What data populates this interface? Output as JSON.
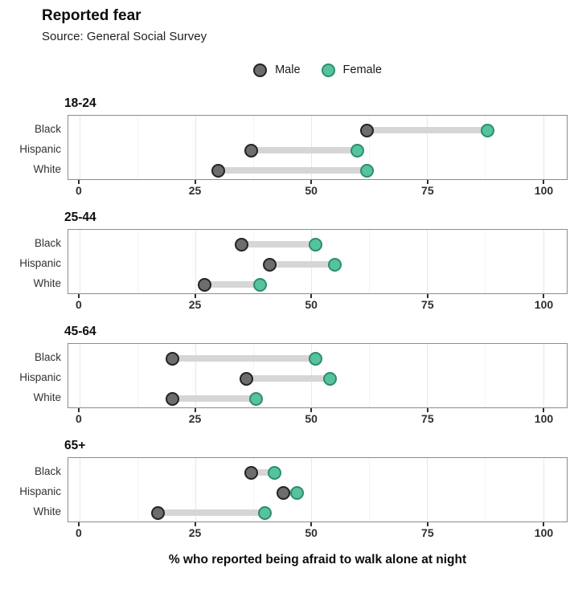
{
  "header": {
    "title": "Reported fear",
    "subtitle": "Source: General Social Survey"
  },
  "legend": {
    "items": [
      {
        "label": "Male",
        "color": "#6d6d6d"
      },
      {
        "label": "Female",
        "color": "#56c3a0"
      }
    ]
  },
  "chart_data": {
    "type": "dumbbell",
    "title": "Reported fear",
    "subtitle": "Source: General Social Survey",
    "xlabel": "% who reported being afraid to walk alone at night",
    "x_ticks": [
      0,
      25,
      50,
      75,
      100
    ],
    "x_minor_ticks": [
      12.5,
      37.5,
      62.5,
      87.5
    ],
    "xlim": [
      -2.4,
      105.1
    ],
    "grid": true,
    "legend_position": "top-center",
    "colors": {
      "male_fill": "#6d6d6d",
      "male_border": "#242424",
      "female_fill": "#56c3a0",
      "female_border": "#2f8c6d",
      "bar": "#d6d6d6"
    },
    "facets": [
      {
        "label": "18-24",
        "categories": [
          "Black",
          "Hispanic",
          "White"
        ],
        "series": [
          {
            "name": "Male",
            "values": [
              62,
              37,
              30
            ]
          },
          {
            "name": "Female",
            "values": [
              88,
              60,
              62
            ]
          }
        ]
      },
      {
        "label": "25-44",
        "categories": [
          "Black",
          "Hispanic",
          "White"
        ],
        "series": [
          {
            "name": "Male",
            "values": [
              35,
              41,
              27
            ]
          },
          {
            "name": "Female",
            "values": [
              51,
              55,
              39
            ]
          }
        ]
      },
      {
        "label": "45-64",
        "categories": [
          "Black",
          "Hispanic",
          "White"
        ],
        "series": [
          {
            "name": "Male",
            "values": [
              20,
              36,
              20
            ]
          },
          {
            "name": "Female",
            "values": [
              51,
              54,
              38
            ]
          }
        ]
      },
      {
        "label": "65+",
        "categories": [
          "Black",
          "Hispanic",
          "White"
        ],
        "series": [
          {
            "name": "Male",
            "values": [
              37,
              44,
              17
            ]
          },
          {
            "name": "Female",
            "values": [
              42,
              47,
              40
            ]
          }
        ]
      }
    ]
  }
}
